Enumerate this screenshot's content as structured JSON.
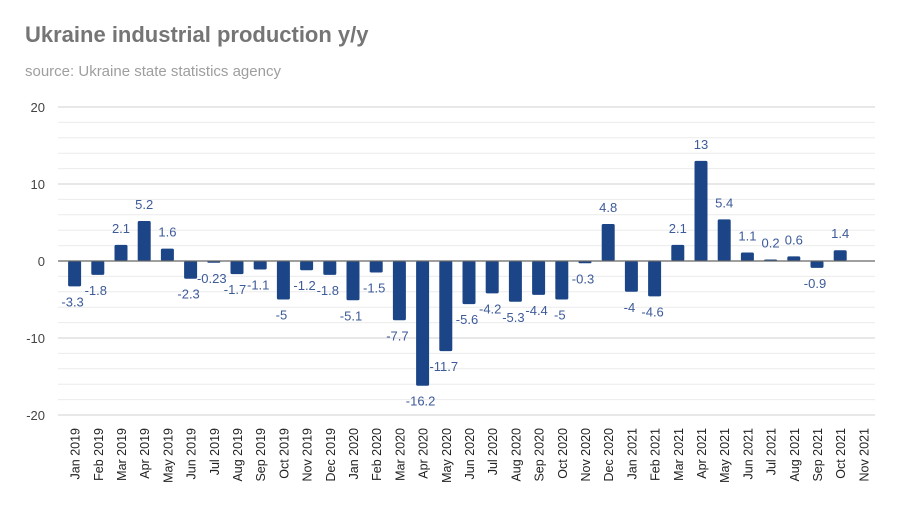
{
  "chart_data": {
    "type": "bar",
    "title": "Ukraine industrial production y/y",
    "subtitle": "source: Ukraine state statistics agency",
    "categories": [
      "Jan 2019",
      "Feb 2019",
      "Mar 2019",
      "Apr 2019",
      "May 2019",
      "Jun 2019",
      "Jul 2019",
      "Aug 2019",
      "Sep 2019",
      "Oct 2019",
      "Nov 2019",
      "Dec 2019",
      "Jan 2020",
      "Feb 2020",
      "Mar 2020",
      "Apr 2020",
      "May 2020",
      "Jun 2020",
      "Jul 2020",
      "Aug 2020",
      "Sep 2020",
      "Oct 2020",
      "Nov 2020",
      "Dec 2020",
      "Jan 2021",
      "Feb 2021",
      "Mar 2021",
      "Apr 2021",
      "May 2021",
      "Jun 2021",
      "Jul 2021",
      "Aug 2021",
      "Sep 2021",
      "Oct 2021",
      "Nov 2021"
    ],
    "values": [
      -3.3,
      -1.8,
      2.1,
      5.2,
      1.6,
      -2.3,
      -0.23,
      -1.7,
      -1.1,
      -5,
      -1.2,
      -1.8,
      -5.1,
      -1.5,
      -7.7,
      -16.2,
      -11.7,
      -5.6,
      -4.2,
      -5.3,
      -4.4,
      -5,
      -0.3,
      4.8,
      -4,
      -4.6,
      2.1,
      13,
      5.4,
      1.1,
      0.2,
      0.6,
      -0.9,
      1.4,
      null
    ],
    "ylim": [
      -20,
      20
    ],
    "yticks": [
      -20,
      -10,
      0,
      10,
      20
    ],
    "grid": true,
    "bar_color": "#1c4587",
    "label_color": "#3d5a99",
    "xlabel": "",
    "ylabel": ""
  }
}
